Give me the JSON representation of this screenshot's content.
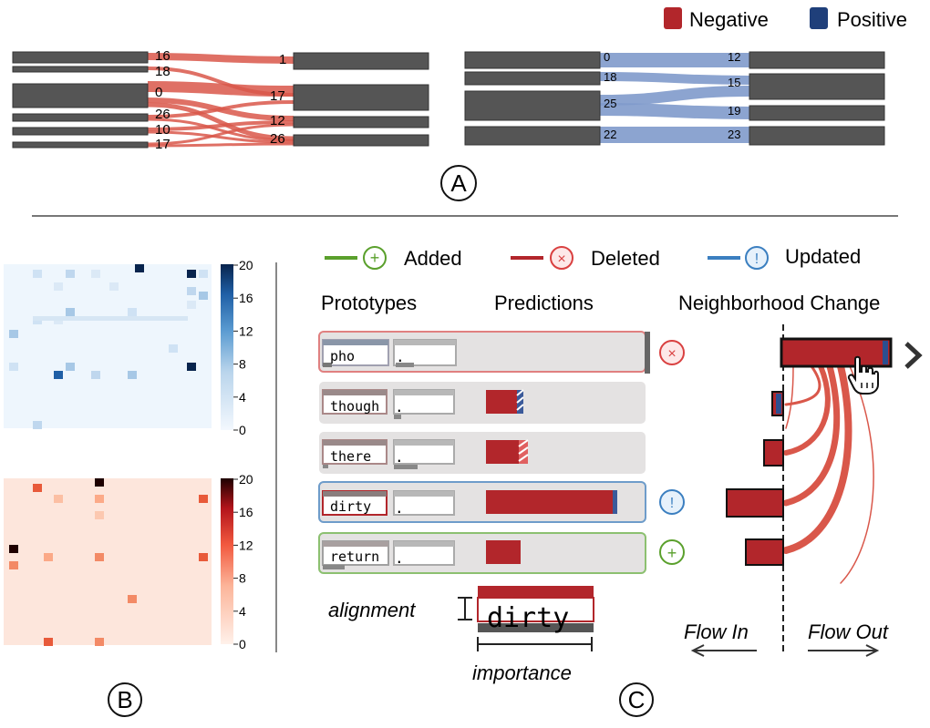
{
  "legend_top": {
    "negative_label": "Negative",
    "positive_label": "Positive",
    "negative_color": "#b2262b",
    "positive_color": "#1f3f7a"
  },
  "panel_a": {
    "label": "A",
    "left_flow": {
      "left_labels": [
        "16",
        "18",
        "0",
        "26",
        "10",
        "17"
      ],
      "right_labels": [
        "1",
        "17",
        "12",
        "26"
      ],
      "color": "#d9574a"
    },
    "right_flow": {
      "left_labels": [
        "0",
        "18",
        "25",
        "22"
      ],
      "right_labels": [
        "12",
        "15",
        "19",
        "23"
      ],
      "color": "#7f9acb"
    }
  },
  "panel_b": {
    "label": "B",
    "blue_scale": {
      "ticks": [
        "20",
        "16",
        "12",
        "8",
        "4",
        "0"
      ]
    },
    "red_scale": {
      "ticks": [
        "20",
        "16",
        "12",
        "8",
        "4",
        "0"
      ]
    }
  },
  "panel_c": {
    "label": "C",
    "legend": {
      "added": "Added",
      "deleted": "Deleted",
      "updated": "Updated",
      "added_color": "#5aa02c",
      "deleted_color": "#b2262b",
      "updated_color": "#3b7fc0"
    },
    "headers": {
      "prototypes": "Prototypes",
      "predictions": "Predictions",
      "neighborhood": "Neighborhood Change"
    },
    "rows": [
      {
        "word": "pho",
        "dot": ".",
        "status": "deleted"
      },
      {
        "word": "though",
        "dot": ".",
        "status": "none"
      },
      {
        "word": "there",
        "dot": ".",
        "status": "none"
      },
      {
        "word": "dirty",
        "dot": ".",
        "status": "updated"
      },
      {
        "word": "return",
        "dot": ".",
        "status": "added"
      }
    ],
    "explainer": {
      "alignment": "alignment",
      "word": "dirty",
      "importance": "importance"
    },
    "flow_in": "Flow In",
    "flow_out": "Flow Out"
  }
}
